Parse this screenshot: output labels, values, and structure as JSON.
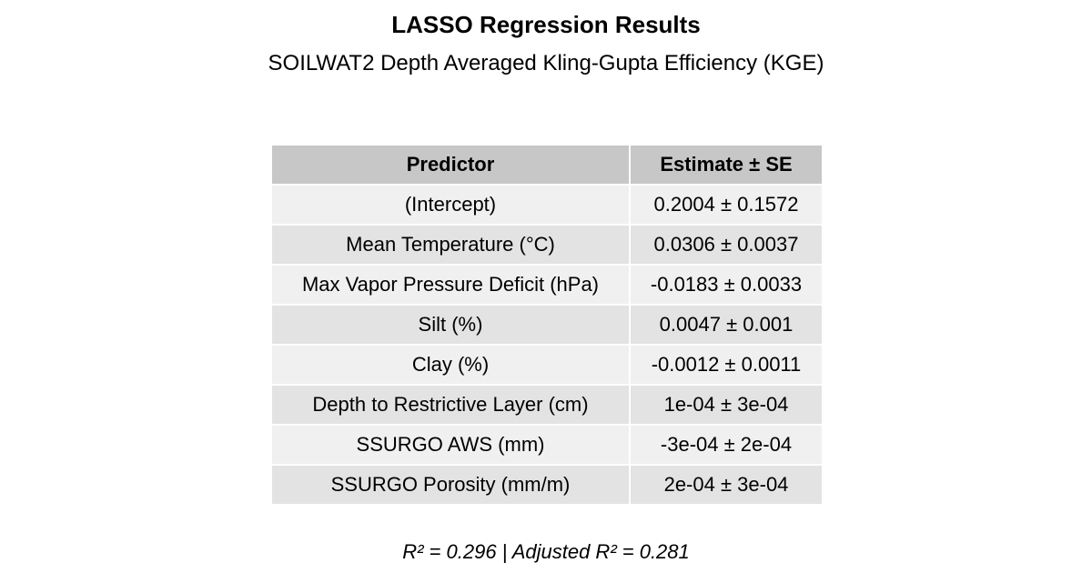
{
  "title": "LASSO Regression Results",
  "subtitle": "SOILWAT2 Depth Averaged Kling-Gupta Efficiency (KGE)",
  "footer": "R² = 0.296 | Adjusted R² = 0.281",
  "chart_data": {
    "type": "table",
    "title": "LASSO Regression Results",
    "subtitle": "SOILWAT2 Depth Averaged Kling-Gupta Efficiency (KGE)",
    "columns": [
      "Predictor",
      "Estimate ± SE"
    ],
    "rows": [
      [
        "(Intercept)",
        "0.2004 ± 0.1572"
      ],
      [
        "Mean Temperature (°C)",
        "0.0306 ± 0.0037"
      ],
      [
        "Max Vapor Pressure Deficit (hPa)",
        "-0.0183 ± 0.0033"
      ],
      [
        "Silt (%)",
        "0.0047 ± 0.001"
      ],
      [
        "Clay (%)",
        "-0.0012 ± 0.0011"
      ],
      [
        "Depth to Restrictive Layer (cm)",
        "1e-04 ± 3e-04"
      ],
      [
        "SSURGO AWS (mm)",
        "-3e-04 ± 2e-04"
      ],
      [
        "SSURGO Porosity (mm/m)",
        "2e-04 ± 3e-04"
      ]
    ],
    "footnote": "R² = 0.296 | Adjusted R² = 0.281"
  }
}
